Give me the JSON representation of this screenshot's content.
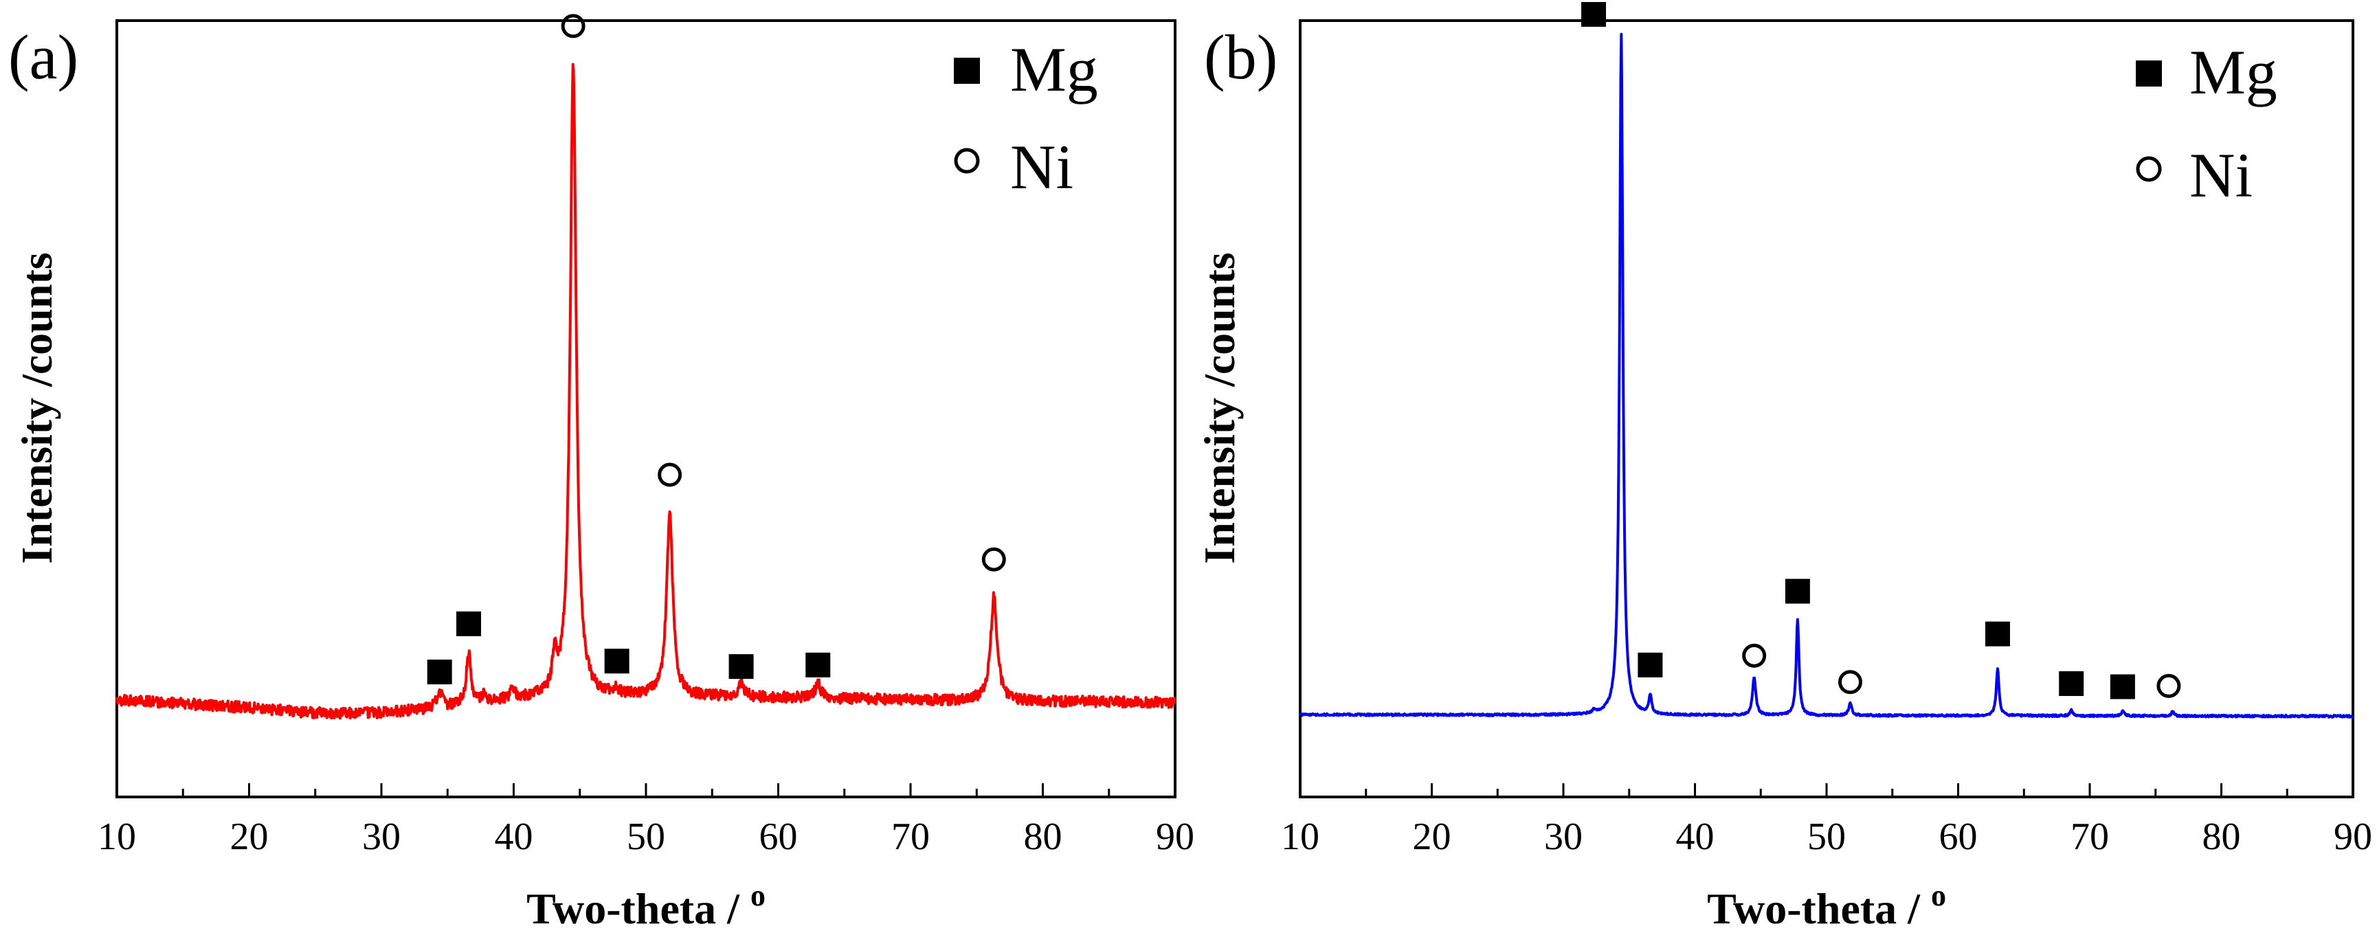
{
  "chart_data": [
    {
      "type": "line",
      "panel_label": "(a)",
      "xlabel": "Two-theta / ",
      "xlabel_superscript": "o",
      "ylabel": "Intensity /counts",
      "xlim": [
        10,
        90
      ],
      "ylim": [
        0,
        100
      ],
      "x_ticks": [
        "10",
        "20",
        "30",
        "40",
        "50",
        "60",
        "70",
        "80",
        "90"
      ],
      "y_ticks": [],
      "grid": false,
      "line_color": "#ff0000",
      "legend": [
        {
          "marker": "filled-square",
          "label": "Mg"
        },
        {
          "marker": "open-circle",
          "label": "Ni"
        }
      ],
      "legend_position": "top-right",
      "baseline": [
        [
          10,
          12.5
        ],
        [
          20,
          11.5
        ],
        [
          25,
          10.8
        ],
        [
          30,
          10.8
        ],
        [
          35,
          11.5
        ],
        [
          40,
          12.5
        ],
        [
          50,
          13.0
        ],
        [
          60,
          12.8
        ],
        [
          70,
          12.5
        ],
        [
          80,
          12.3
        ],
        [
          90,
          12.2
        ]
      ],
      "peaks": [
        {
          "x": 34.4,
          "height": 13.7,
          "width": 0.45
        },
        {
          "x": 36.6,
          "height": 18.2,
          "width": 0.45
        },
        {
          "x": 37.8,
          "height": 13.3,
          "width": 0.35
        },
        {
          "x": 39.9,
          "height": 14.0,
          "width": 0.35
        },
        {
          "x": 43.1,
          "height": 17.2,
          "width": 0.4
        },
        {
          "x": 44.5,
          "height": 94.2,
          "width": 0.55
        },
        {
          "x": 47.8,
          "height": 13.5,
          "width": 0.45
        },
        {
          "x": 51.8,
          "height": 36.6,
          "width": 0.55
        },
        {
          "x": 57.2,
          "height": 14.7,
          "width": 0.5
        },
        {
          "x": 63.0,
          "height": 14.6,
          "width": 0.5
        },
        {
          "x": 76.3,
          "height": 25.7,
          "width": 0.6
        }
      ],
      "markers": [
        {
          "phase": "Mg",
          "x": 34.4,
          "y": 16.1
        },
        {
          "phase": "Mg",
          "x": 36.6,
          "y": 22.3
        },
        {
          "phase": "Mg",
          "x": 47.8,
          "y": 17.5
        },
        {
          "phase": "Mg",
          "x": 57.2,
          "y": 16.8
        },
        {
          "phase": "Mg",
          "x": 63.0,
          "y": 17.0
        },
        {
          "phase": "Ni",
          "x": 44.5,
          "y": 99.3
        },
        {
          "phase": "Ni",
          "x": 51.8,
          "y": 41.5
        },
        {
          "phase": "Ni",
          "x": 76.3,
          "y": 30.6
        }
      ]
    },
    {
      "type": "line",
      "panel_label": "(b)",
      "xlabel": "Two-theta / ",
      "xlabel_superscript": "o",
      "ylabel": "Intensity /counts",
      "xlim": [
        10,
        90
      ],
      "ylim": [
        0,
        100
      ],
      "x_ticks": [
        "10",
        "20",
        "30",
        "40",
        "50",
        "60",
        "70",
        "80",
        "90"
      ],
      "y_ticks": [],
      "grid": false,
      "line_color": "#0000ff",
      "legend": [
        {
          "marker": "filled-square",
          "label": "Mg"
        },
        {
          "marker": "open-circle",
          "label": "Ni"
        }
      ],
      "legend_position": "top-right",
      "baseline": [
        [
          10,
          10.6
        ],
        [
          50,
          10.5
        ],
        [
          90,
          10.4
        ]
      ],
      "peaks": [
        {
          "x": 32.3,
          "height": 11.0,
          "width": 0.2
        },
        {
          "x": 34.4,
          "height": 98.3,
          "width": 0.3
        },
        {
          "x": 36.6,
          "height": 12.9,
          "width": 0.25
        },
        {
          "x": 44.5,
          "height": 15.4,
          "width": 0.3
        },
        {
          "x": 47.8,
          "height": 22.9,
          "width": 0.25
        },
        {
          "x": 51.8,
          "height": 12.0,
          "width": 0.3
        },
        {
          "x": 63.0,
          "height": 16.5,
          "width": 0.25
        },
        {
          "x": 68.6,
          "height": 11.2,
          "width": 0.25
        },
        {
          "x": 72.5,
          "height": 11.1,
          "width": 0.25
        },
        {
          "x": 76.3,
          "height": 11.0,
          "width": 0.25
        }
      ],
      "markers": [
        {
          "phase": "Mg",
          "x": 32.3,
          "y": 100.8
        },
        {
          "phase": "Mg",
          "x": 36.6,
          "y": 17.0
        },
        {
          "phase": "Mg",
          "x": 47.8,
          "y": 26.5
        },
        {
          "phase": "Mg",
          "x": 63.0,
          "y": 21.0
        },
        {
          "phase": "Mg",
          "x": 68.6,
          "y": 14.6
        },
        {
          "phase": "Mg",
          "x": 72.5,
          "y": 14.2
        },
        {
          "phase": "Ni",
          "x": 44.5,
          "y": 18.2
        },
        {
          "phase": "Ni",
          "x": 51.8,
          "y": 14.8
        },
        {
          "phase": "Ni",
          "x": 76.0,
          "y": 14.3
        }
      ]
    }
  ]
}
